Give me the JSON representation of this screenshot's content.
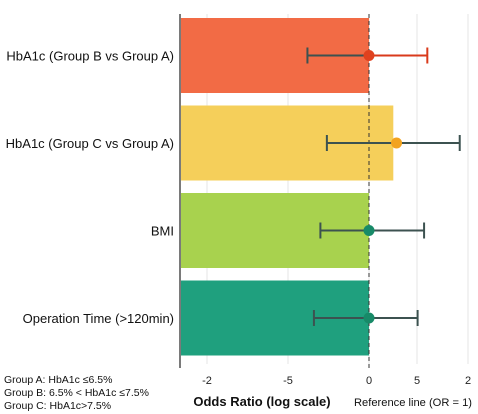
{
  "chart_data": {
    "type": "bar",
    "title": "",
    "xlabel": "Odds Ratio (log scale)",
    "ylabel": "",
    "xticks": [
      "-2",
      "-5",
      "0",
      "5",
      "2"
    ],
    "reference_label": "Reference line (OR = 1)",
    "categories": [
      "HbA1c (Group B vs Group A)",
      "HbA1c (Group C vs Group A)",
      "BMI",
      "Operation Time (>120min)"
    ],
    "bars": [
      {
        "category": "HbA1c (Group B vs Group A)",
        "value": 0,
        "color": "#F26B45"
      },
      {
        "category": "HbA1c (Group C vs Group A)",
        "value": 1.5,
        "color": "#F5CF5A"
      },
      {
        "category": "BMI",
        "value": 0,
        "color": "#A8D24E"
      },
      {
        "category": "Operation Time (>120min)",
        "value": 0,
        "color": "#1FA07E"
      }
    ],
    "estimates": [
      {
        "category": "HbA1c (Group B vs Group A)",
        "point": 0,
        "lower": -3.8,
        "upper": 3.6,
        "point_color": "#E0411E",
        "upper_whisker_color": "#D93A1B"
      },
      {
        "category": "HbA1c (Group C vs Group A)",
        "point": 1.7,
        "lower": -2.6,
        "upper": 5.6,
        "point_color": "#F2A31F",
        "upper_whisker_color": "#3C5250"
      },
      {
        "category": "BMI",
        "point": 0,
        "lower": -3.0,
        "upper": 3.4,
        "point_color": "#178A68",
        "upper_whisker_color": "#3C5250"
      },
      {
        "category": "Operation Time (>120min)",
        "point": 0,
        "lower": -3.4,
        "upper": 3.0,
        "point_color": "#178A68",
        "upper_whisker_color": "#3C5250"
      }
    ],
    "reference_line": 0,
    "grid": true,
    "legend": "none",
    "colors": {
      "whisker": "#3C5250",
      "grid": "#e6e6e6",
      "reference": "#333333"
    }
  },
  "notes": [
    "Group A: HbA1c ≤6.5%",
    "Group B: 6.5% < HbA1c ≤7.5%",
    "Group C: HbA1c>7.5%"
  ]
}
